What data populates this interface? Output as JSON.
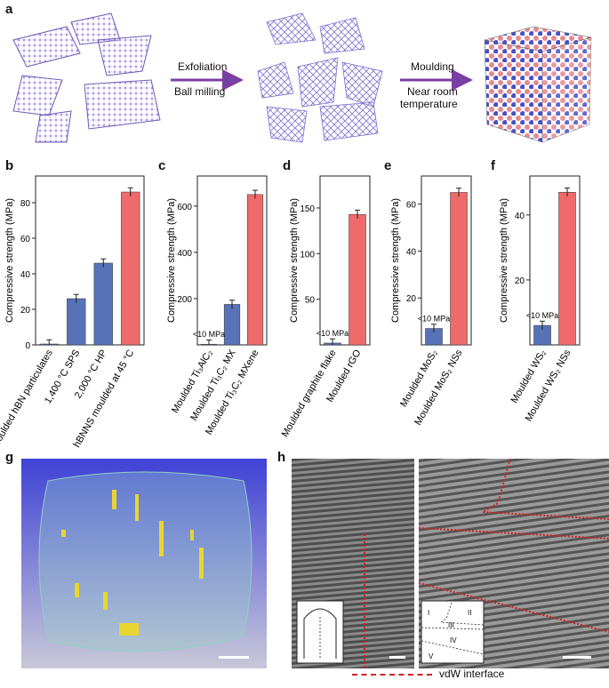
{
  "figure": {
    "panel_labels": [
      "a",
      "b",
      "c",
      "d",
      "e",
      "f",
      "g",
      "h"
    ],
    "panel_a": {
      "step1_top": "Exfoliation",
      "step1_bottom": "Ball milling",
      "step2_top": "Moulding",
      "step2_bottom_1": "Near room",
      "step2_bottom_2": "temperature"
    },
    "panel_h": {
      "legend": "vdW interface",
      "inset_regions": [
        "I",
        "II",
        "III",
        "IV",
        "V"
      ]
    },
    "colors": {
      "blue_bar": "#5872b8",
      "red_bar": "#ef6a6a",
      "arrow_purple": "#7a3fa3",
      "interface_red": "#d42020",
      "panel_g_bg": "#4a4fd8"
    }
  },
  "chart_data": [
    {
      "panel": "b",
      "type": "bar",
      "ylabel": "Compressive strength (MPa)",
      "ylim": [
        0,
        95
      ],
      "yticks": [
        0,
        20,
        40,
        60,
        80
      ],
      "categories": [
        "Moulded hBN particulates",
        "1,400 °C SPS",
        "2,000 °C HP",
        "hBNNS moulded at 45 °C"
      ],
      "values": [
        0.5,
        26,
        46,
        86
      ],
      "colors": [
        "#5872b8",
        "#5872b8",
        "#5872b8",
        "#ef6a6a"
      ],
      "annotations": []
    },
    {
      "panel": "c",
      "type": "bar",
      "ylabel": "Compressive strength (MPa)",
      "ylim": [
        0,
        730
      ],
      "yticks": [
        200,
        400,
        600
      ],
      "categories": [
        "Moulded Ti₃AlC₂",
        "Moulded Ti₃C₂ MX",
        "Moulded Ti₃C₂ MXene"
      ],
      "values": [
        3,
        175,
        650
      ],
      "colors": [
        "#5872b8",
        "#5872b8",
        "#ef6a6a"
      ],
      "annotations": [
        "<10 MPa"
      ]
    },
    {
      "panel": "d",
      "type": "bar",
      "ylabel": "Compressive strength (MPa)",
      "ylim": [
        0,
        185
      ],
      "yticks": [
        50,
        100,
        150
      ],
      "categories": [
        "Moulded graphite flake",
        "Moulded rGO"
      ],
      "values": [
        2,
        143
      ],
      "colors": [
        "#5872b8",
        "#ef6a6a"
      ],
      "annotations": [
        "<10 MPa"
      ]
    },
    {
      "panel": "e",
      "type": "bar",
      "ylabel": "Compressive strength (MPa)",
      "ylim": [
        0,
        72
      ],
      "yticks": [
        20,
        40,
        60
      ],
      "categories": [
        "Moulded MoS₂",
        "Moulded MoS₂ NSs"
      ],
      "values": [
        7,
        65
      ],
      "colors": [
        "#5872b8",
        "#ef6a6a"
      ],
      "annotations": [
        "<10 MPa"
      ]
    },
    {
      "panel": "f",
      "type": "bar",
      "ylabel": "Compressive strength (MPa)",
      "ylim": [
        0,
        52
      ],
      "yticks": [
        20,
        40
      ],
      "categories": [
        "Moulded WS₂",
        "Moulded WS₂ NSs"
      ],
      "values": [
        6,
        47
      ],
      "colors": [
        "#5872b8",
        "#ef6a6a"
      ],
      "annotations": [
        "<10 MPa"
      ]
    }
  ]
}
